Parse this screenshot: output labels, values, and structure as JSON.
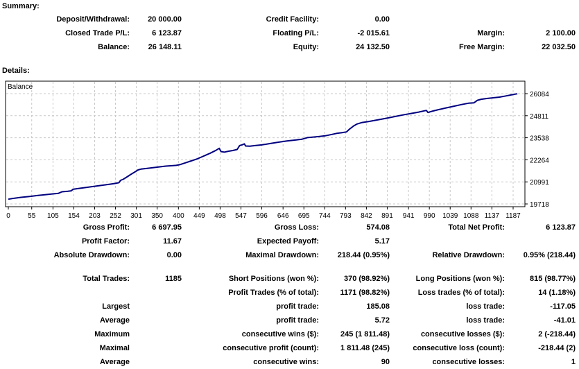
{
  "summary": {
    "title": "Summary:",
    "rows": [
      [
        "Deposit/Withdrawal:",
        "20 000.00",
        "Credit Facility:",
        "0.00",
        "",
        ""
      ],
      [
        "Closed Trade P/L:",
        "6 123.87",
        "Floating P/L:",
        "-2 015.61",
        "Margin:",
        "2 100.00"
      ],
      [
        "Balance:",
        "26 148.11",
        "Equity:",
        "24 132.50",
        "Free Margin:",
        "22 032.50"
      ]
    ]
  },
  "details": {
    "title": "Details:",
    "gap_after_row_index": 2,
    "rows": [
      [
        "Gross Profit:",
        "6 697.95",
        "Gross Loss:",
        "574.08",
        "Total Net Profit:",
        "6 123.87"
      ],
      [
        "Profit Factor:",
        "11.67",
        "Expected Payoff:",
        "5.17",
        "",
        ""
      ],
      [
        "Absolute Drawdown:",
        "0.00",
        "Maximal Drawdown:",
        "218.44 (0.95%)",
        "Relative Drawdown:",
        "0.95% (218.44)"
      ],
      [
        "Total Trades:",
        "1185",
        "Short Positions (won %):",
        "370 (98.92%)",
        "Long Positions (won %):",
        "815 (98.77%)"
      ],
      [
        "",
        "",
        "Profit Trades (% of total):",
        "1171 (98.82%)",
        "Loss trades (% of total):",
        "14 (1.18%)"
      ],
      [
        "Largest",
        "",
        "profit trade:",
        "185.08",
        "loss trade:",
        "-117.05"
      ],
      [
        "Average",
        "",
        "profit trade:",
        "5.72",
        "loss trade:",
        "-41.01"
      ],
      [
        "Maximum",
        "",
        "consecutive wins ($):",
        "245 (1 811.48)",
        "consecutive losses ($):",
        "2 (-218.44)"
      ],
      [
        "Maximal",
        "",
        "consecutive profit (count):",
        "1 811.48 (245)",
        "consecutive loss (count):",
        "-218.44 (2)"
      ],
      [
        "Average",
        "",
        "consecutive wins:",
        "90",
        "consecutive losses:",
        "1"
      ]
    ]
  },
  "chart_data": {
    "type": "line",
    "title": "Balance",
    "series_label": "Balance",
    "line_color": "#000080",
    "grid_color": "#c8c8c8",
    "xlabel": "",
    "ylabel": "",
    "xlim": [
      0,
      1215
    ],
    "ylim": [
      19558,
      26810
    ],
    "x_ticks": [
      0,
      55,
      105,
      154,
      203,
      252,
      301,
      350,
      400,
      449,
      498,
      547,
      596,
      646,
      695,
      744,
      793,
      842,
      891,
      941,
      990,
      1039,
      1088,
      1137,
      1187
    ],
    "y_ticks": [
      26084,
      24811,
      23538,
      22264,
      20991,
      19718
    ],
    "grid": true,
    "legend_position": "top-left-inside",
    "points": [
      [
        0,
        19990
      ],
      [
        15,
        20050
      ],
      [
        30,
        20100
      ],
      [
        50,
        20150
      ],
      [
        70,
        20210
      ],
      [
        90,
        20260
      ],
      [
        105,
        20300
      ],
      [
        118,
        20330
      ],
      [
        126,
        20420
      ],
      [
        140,
        20450
      ],
      [
        148,
        20475
      ],
      [
        152,
        20565
      ],
      [
        165,
        20610
      ],
      [
        180,
        20660
      ],
      [
        195,
        20710
      ],
      [
        210,
        20760
      ],
      [
        225,
        20810
      ],
      [
        240,
        20860
      ],
      [
        252,
        20905
      ],
      [
        260,
        20945
      ],
      [
        264,
        21080
      ],
      [
        270,
        21140
      ],
      [
        278,
        21260
      ],
      [
        288,
        21420
      ],
      [
        297,
        21555
      ],
      [
        305,
        21680
      ],
      [
        312,
        21730
      ],
      [
        325,
        21765
      ],
      [
        340,
        21810
      ],
      [
        355,
        21855
      ],
      [
        370,
        21900
      ],
      [
        385,
        21925
      ],
      [
        395,
        21945
      ],
      [
        405,
        21995
      ],
      [
        415,
        22075
      ],
      [
        430,
        22200
      ],
      [
        443,
        22310
      ],
      [
        452,
        22400
      ],
      [
        462,
        22510
      ],
      [
        475,
        22650
      ],
      [
        488,
        22810
      ],
      [
        496,
        22930
      ],
      [
        500,
        22740
      ],
      [
        508,
        22710
      ],
      [
        518,
        22760
      ],
      [
        528,
        22800
      ],
      [
        538,
        22860
      ],
      [
        544,
        23090
      ],
      [
        550,
        23130
      ],
      [
        555,
        23185
      ],
      [
        558,
        23060
      ],
      [
        568,
        23055
      ],
      [
        580,
        23085
      ],
      [
        596,
        23125
      ],
      [
        615,
        23200
      ],
      [
        635,
        23280
      ],
      [
        655,
        23350
      ],
      [
        675,
        23405
      ],
      [
        690,
        23450
      ],
      [
        703,
        23545
      ],
      [
        715,
        23570
      ],
      [
        730,
        23605
      ],
      [
        745,
        23650
      ],
      [
        758,
        23715
      ],
      [
        772,
        23790
      ],
      [
        785,
        23835
      ],
      [
        795,
        23875
      ],
      [
        803,
        24050
      ],
      [
        812,
        24220
      ],
      [
        820,
        24330
      ],
      [
        832,
        24420
      ],
      [
        848,
        24480
      ],
      [
        868,
        24565
      ],
      [
        888,
        24660
      ],
      [
        908,
        24760
      ],
      [
        928,
        24855
      ],
      [
        948,
        24945
      ],
      [
        965,
        25020
      ],
      [
        978,
        25090
      ],
      [
        983,
        25115
      ],
      [
        987,
        24995
      ],
      [
        998,
        25080
      ],
      [
        1012,
        25165
      ],
      [
        1030,
        25265
      ],
      [
        1048,
        25360
      ],
      [
        1066,
        25455
      ],
      [
        1082,
        25530
      ],
      [
        1095,
        25555
      ],
      [
        1103,
        25700
      ],
      [
        1112,
        25760
      ],
      [
        1125,
        25805
      ],
      [
        1140,
        25845
      ],
      [
        1155,
        25885
      ],
      [
        1170,
        25950
      ],
      [
        1185,
        26025
      ],
      [
        1197,
        26075
      ]
    ]
  }
}
